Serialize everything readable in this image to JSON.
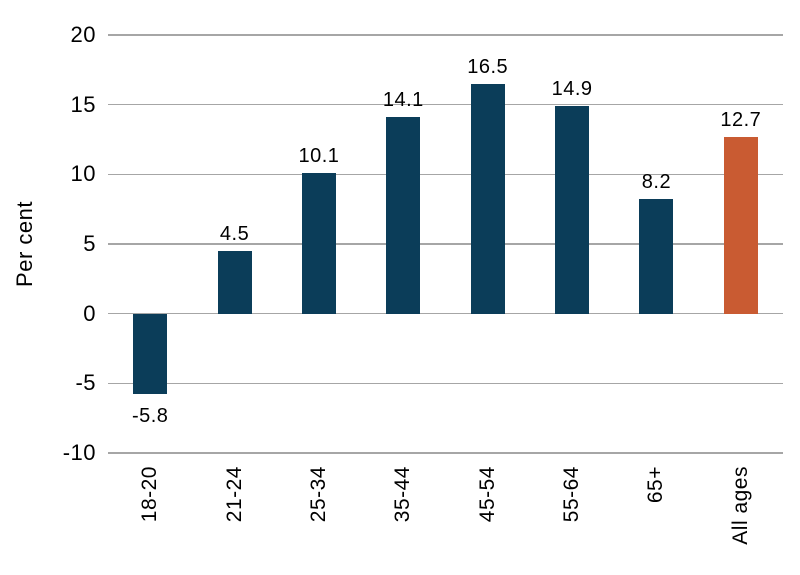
{
  "chart_data": {
    "type": "bar",
    "title": "",
    "xlabel": "",
    "ylabel": "Per cent",
    "categories": [
      "18-20",
      "21-24",
      "25-34",
      "35-44",
      "45-54",
      "55-64",
      "65+",
      "All ages"
    ],
    "values": [
      -5.8,
      4.5,
      10.1,
      14.1,
      16.5,
      14.9,
      8.2,
      12.7
    ],
    "data_labels": [
      "-5.8",
      "4.5",
      "10.1",
      "14.1",
      "16.5",
      "14.9",
      "8.2",
      "12.7"
    ],
    "bar_colors": [
      "#0b3d59",
      "#0b3d59",
      "#0b3d59",
      "#0b3d59",
      "#0b3d59",
      "#0b3d59",
      "#0b3d59",
      "#c95b32"
    ],
    "ylim": [
      -10,
      20
    ],
    "yticks": [
      20,
      15,
      10,
      5,
      0,
      -5,
      -10
    ],
    "grid": true,
    "legend": "none",
    "colors": {
      "bar_default": "#0b3d59",
      "bar_highlight": "#c95b32",
      "highlight_category": "All ages",
      "gridline": "#a6a6a6",
      "text": "#000000",
      "background": "#ffffff"
    }
  }
}
